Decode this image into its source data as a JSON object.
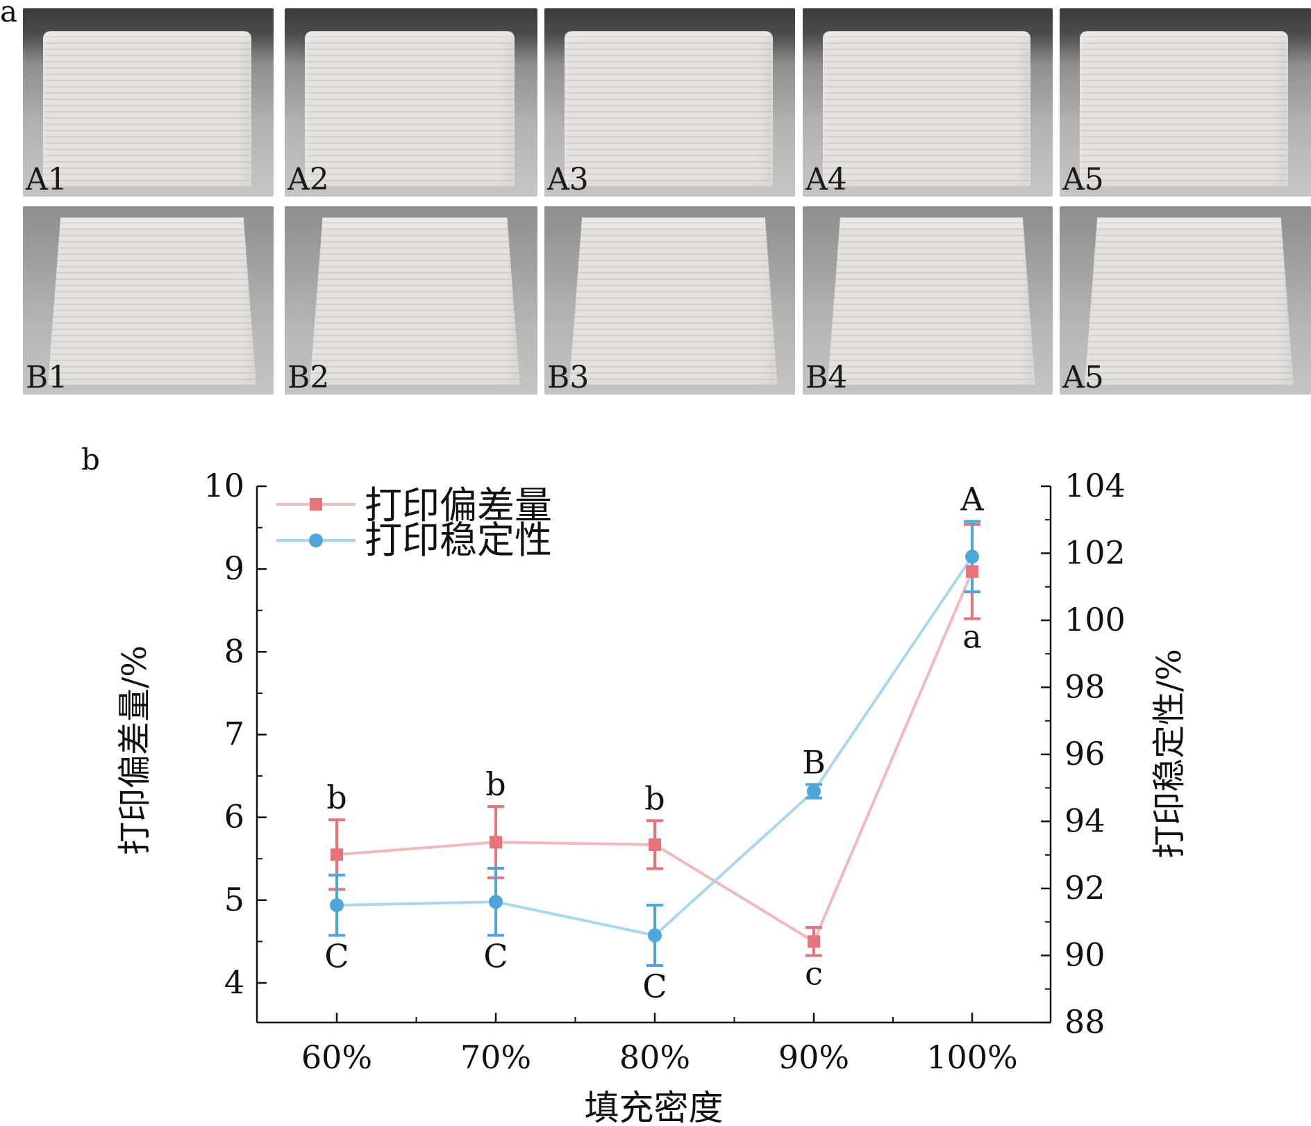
{
  "panel_a": {
    "letter": "a",
    "row_a": [
      "A1",
      "A2",
      "A3",
      "A4",
      "A5"
    ],
    "row_b": [
      "B1",
      "B2",
      "B3",
      "B4",
      "A5"
    ]
  },
  "panel_b": {
    "letter": "b"
  },
  "chart_data": {
    "type": "line",
    "title": "",
    "xlabel": "填充密度",
    "categories": [
      "60%",
      "70%",
      "80%",
      "90%",
      "100%"
    ],
    "ylabel_left": "打印偏差量/%",
    "ylabel_right": "打印稳定性/%",
    "ylim_left": [
      3.5,
      10
    ],
    "ylim_right": [
      88,
      104
    ],
    "yticks_left": [
      4,
      5,
      6,
      7,
      8,
      9,
      10
    ],
    "yticks_right": [
      88,
      90,
      92,
      94,
      96,
      98,
      100,
      102,
      104
    ],
    "legend_position": "top-left",
    "grid": false,
    "series": [
      {
        "name": "打印偏差量",
        "axis": "left",
        "color": "#e8737a",
        "line_color": "#f2b8bc",
        "marker": "square",
        "values": [
          5.55,
          5.7,
          5.67,
          4.5,
          8.97
        ],
        "errors": [
          0.42,
          0.43,
          0.29,
          0.17,
          0.57
        ],
        "labels": [
          "b",
          "b",
          "b",
          "c",
          "a"
        ]
      },
      {
        "name": "打印稳定性",
        "axis": "right",
        "color": "#4ea6da",
        "line_color": "#a9d7ef",
        "marker": "circle",
        "values": [
          91.5,
          91.6,
          90.6,
          94.9,
          101.9
        ],
        "errors": [
          0.9,
          1.0,
          0.9,
          0.2,
          1.05
        ],
        "labels": [
          "C",
          "C",
          "C",
          "B",
          "A"
        ]
      }
    ]
  }
}
